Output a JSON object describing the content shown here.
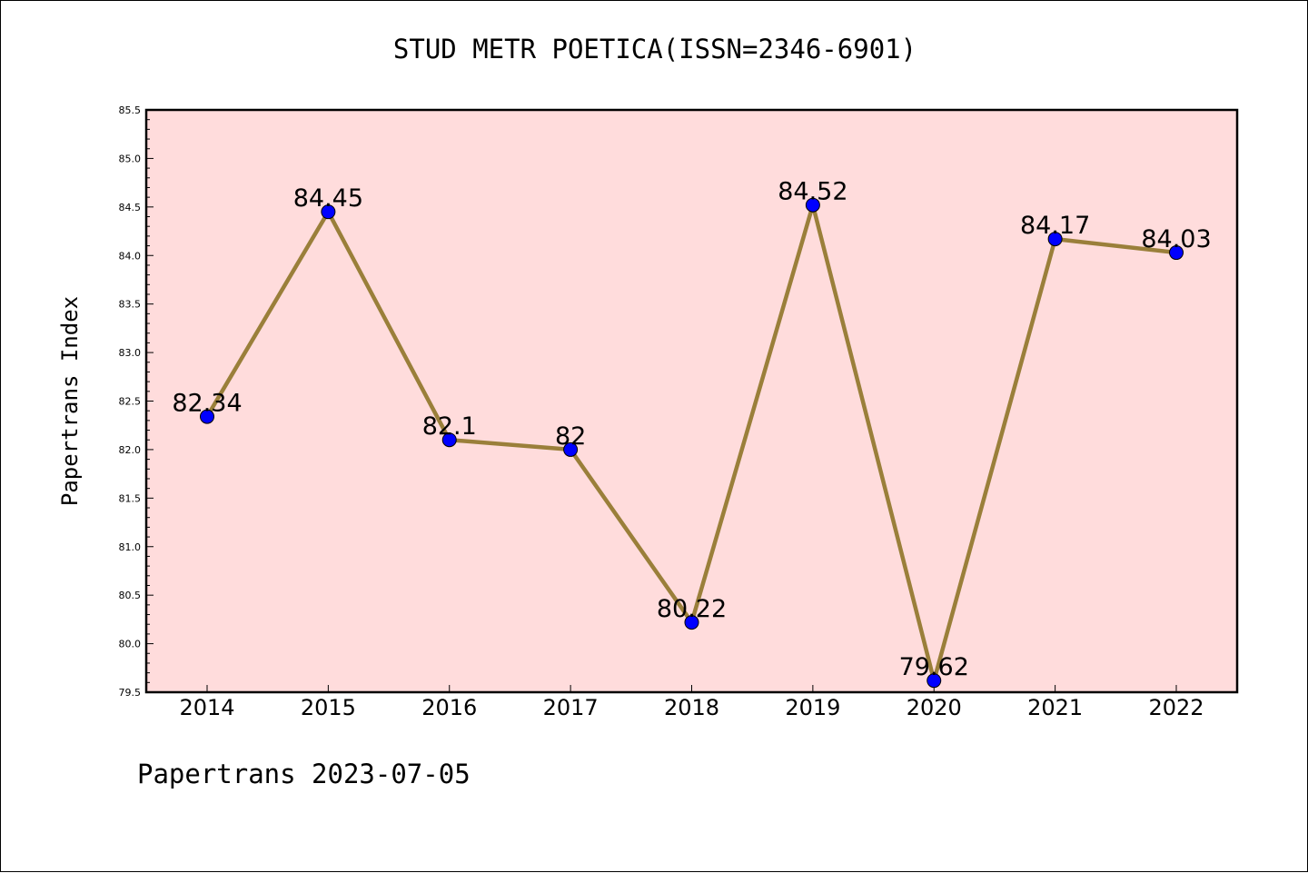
{
  "chart_data": {
    "type": "line",
    "title": "STUD METR POETICA(ISSN=2346-6901)",
    "ylabel": "Papertrans Index",
    "xlabel": "",
    "categories": [
      "2014",
      "2015",
      "2016",
      "2017",
      "2018",
      "2019",
      "2020",
      "2021",
      "2022"
    ],
    "values": [
      82.34,
      84.45,
      82.1,
      82,
      80.22,
      84.52,
      79.62,
      84.17,
      84.03
    ],
    "data_labels": [
      "82.34",
      "84.45",
      "82.1",
      "82",
      "80.22",
      "84.52",
      "79.62",
      "84.17",
      "84.03"
    ],
    "ylim": [
      79.5,
      85.5
    ],
    "yticks": [
      "79.5",
      "80.0",
      "80.5",
      "81.0",
      "81.5",
      "82.0",
      "82.5",
      "83.0",
      "83.5",
      "84.0",
      "84.5",
      "85.0",
      "85.5"
    ],
    "grid": false,
    "colors": {
      "plot_background": "#ffdcdc",
      "line": "#9a7f3a",
      "marker": "#0000ff"
    }
  },
  "footer": "Papertrans 2023-07-05"
}
